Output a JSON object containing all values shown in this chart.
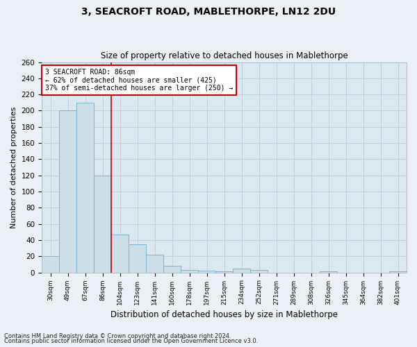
{
  "title1": "3, SEACROFT ROAD, MABLETHORPE, LN12 2DU",
  "title2": "Size of property relative to detached houses in Mablethorpe",
  "xlabel": "Distribution of detached houses by size in Mablethorpe",
  "ylabel": "Number of detached properties",
  "categories": [
    "30sqm",
    "49sqm",
    "67sqm",
    "86sqm",
    "104sqm",
    "123sqm",
    "141sqm",
    "160sqm",
    "178sqm",
    "197sqm",
    "215sqm",
    "234sqm",
    "252sqm",
    "271sqm",
    "289sqm",
    "308sqm",
    "326sqm",
    "345sqm",
    "364sqm",
    "382sqm",
    "401sqm"
  ],
  "values": [
    20,
    200,
    210,
    120,
    47,
    35,
    22,
    8,
    3,
    2,
    1,
    5,
    3,
    0,
    0,
    0,
    1,
    0,
    0,
    0,
    1
  ],
  "bar_color": "#ccdee8",
  "bar_edge_color": "#7ab4cc",
  "highlight_index": 3,
  "highlight_line_color": "#cc0000",
  "annotation_text": "3 SEACROFT ROAD: 86sqm\n← 62% of detached houses are smaller (425)\n37% of semi-detached houses are larger (250) →",
  "annotation_box_facecolor": "#ffffff",
  "annotation_box_edgecolor": "#cc0000",
  "grid_color": "#c0d0de",
  "bg_color": "#dce8f0",
  "fig_bg_color": "#eaf0f6",
  "footer1": "Contains HM Land Registry data © Crown copyright and database right 2024.",
  "footer2": "Contains public sector information licensed under the Open Government Licence v3.0.",
  "ylim": [
    0,
    260
  ],
  "yticks": [
    0,
    20,
    40,
    60,
    80,
    100,
    120,
    140,
    160,
    180,
    200,
    220,
    240,
    260
  ]
}
